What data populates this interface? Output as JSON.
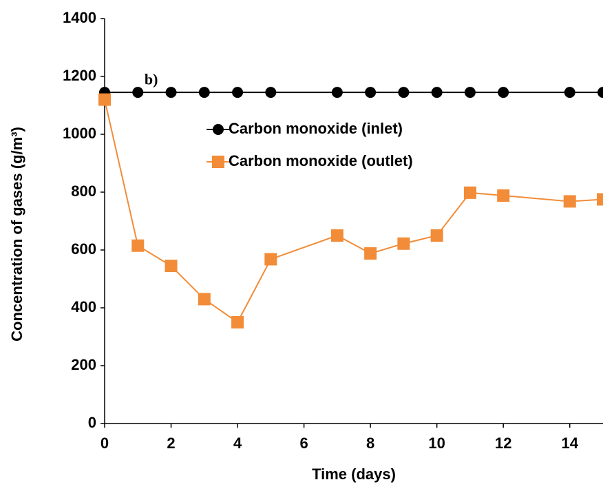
{
  "chart_data": {
    "type": "line",
    "x_label": "Time (days)",
    "y_label": "Concentration of gases  (g/m³)",
    "annotation": "b)",
    "annotation_x": 1.2,
    "annotation_y": 1185,
    "xlim": [
      0,
      15
    ],
    "xticks": [
      0,
      2,
      4,
      6,
      8,
      10,
      12,
      14
    ],
    "ylim": [
      0,
      1400
    ],
    "yticks": [
      0,
      200,
      400,
      600,
      800,
      1000,
      1200,
      1400
    ],
    "legend": "upper center",
    "series": [
      {
        "name": "Carbon monoxide (inlet)",
        "color": "#000000",
        "marker": "circle",
        "x": [
          0,
          1,
          2,
          3,
          4,
          5,
          7,
          8,
          9,
          10,
          11,
          12,
          14,
          15
        ],
        "values": [
          1145,
          1145,
          1145,
          1145,
          1145,
          1145,
          1145,
          1145,
          1145,
          1145,
          1145,
          1145,
          1145,
          1145
        ]
      },
      {
        "name": "Carbon monoxide (outlet)",
        "color": "#f28c38",
        "marker": "square",
        "x": [
          0,
          1,
          2,
          3,
          4,
          5,
          7,
          8,
          9,
          10,
          11,
          12,
          14,
          15
        ],
        "values": [
          1120,
          615,
          545,
          430,
          350,
          568,
          650,
          588,
          622,
          650,
          798,
          788,
          768,
          775
        ]
      }
    ]
  }
}
